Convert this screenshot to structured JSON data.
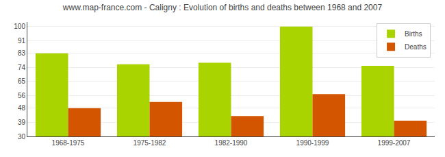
{
  "chart_data": {
    "type": "bar",
    "title": "www.map-france.com - Caligny : Evolution of births and deaths between 1968 and 2007",
    "categories": [
      "1968-1975",
      "1975-1982",
      "1982-1990",
      "1990-1999",
      "1999-2007"
    ],
    "series": [
      {
        "name": "Births",
        "color": "#aad400",
        "values": [
          83,
          76,
          77,
          100,
          75
        ]
      },
      {
        "name": "Deaths",
        "color": "#d45500",
        "values": [
          48,
          52,
          43,
          57,
          40
        ]
      }
    ],
    "ylim": [
      30,
      103
    ],
    "yticks": [
      30,
      39,
      48,
      56,
      65,
      74,
      83,
      91,
      100
    ],
    "grid": true,
    "legend": "upper right"
  }
}
